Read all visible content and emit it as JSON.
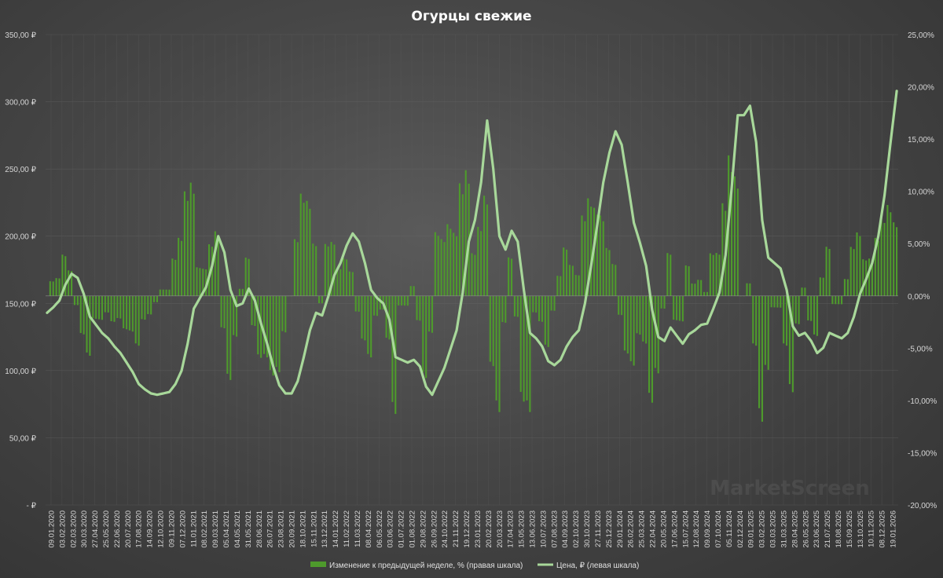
{
  "chart_data": {
    "type": "bar+line",
    "title": "Огурцы свежие",
    "watermark": "MarketScreen",
    "left_axis": {
      "ylim": [
        0,
        350
      ],
      "ticks": [
        "-  ₽",
        "50,00 ₽",
        "100,00 ₽",
        "150,00 ₽",
        "200,00 ₽",
        "250,00 ₽",
        "300,00 ₽",
        "350,00 ₽"
      ]
    },
    "right_axis": {
      "ylim": [
        -20,
        25
      ],
      "ticks": [
        "-20,00%",
        "-15,00%",
        "-10,00%",
        "-5,00%",
        "0,00%",
        "5,00%",
        "10,00%",
        "15,00%",
        "20,00%",
        "25,00%"
      ]
    },
    "x_tick_labels": [
      "09.01.2020",
      "03.02.2020",
      "02.03.2020",
      "30.03.2020",
      "27.04.2020",
      "25.05.2020",
      "22.06.2020",
      "20.07.2020",
      "17.08.2020",
      "14.09.2020",
      "12.10.2020",
      "09.11.2020",
      "07.12.2020",
      "11.01.2021",
      "08.02.2021",
      "09.03.2021",
      "05.04.2021",
      "04.05.2021",
      "31.05.2021",
      "28.06.2021",
      "26.07.2021",
      "23.08.2021",
      "20.09.2021",
      "18.10.2021",
      "15.11.2021",
      "13.12.2021",
      "14.01.2022",
      "11.02.2022",
      "11.03.2022",
      "08.04.2022",
      "06.05.2022",
      "03.06.2022",
      "01.07.2022",
      "01.08.2022",
      "29.08.2022",
      "26.09.2022",
      "24.10.2022",
      "21.11.2022",
      "19.12.2022",
      "23.01.2023",
      "20.02.2023",
      "20.03.2023",
      "17.04.2023",
      "15.05.2023",
      "13.06.2023",
      "10.07.2023",
      "07.08.2023",
      "04.09.2023",
      "02.10.2023",
      "30.10.2023",
      "27.11.2023",
      "25.12.2023",
      "29.01.2024",
      "26.02.2024",
      "25.03.2024",
      "22.04.2024",
      "20.05.2024",
      "17.06.2024",
      "15.07.2024",
      "12.08.2024",
      "09.09.2024",
      "07.10.2024",
      "05.11.2024",
      "02.12.2024",
      "09.01.2025",
      "03.02.2025",
      "03.03.2025",
      "31.03.2025",
      "28.04.2025",
      "26.05.2025",
      "23.06.2025",
      "21.07.2025",
      "18.08.2025",
      "15.09.2025",
      "13.10.2025",
      "10.11.2025",
      "08.12.2025",
      "19.01.2026"
    ],
    "price_keyframes": [
      [
        0,
        143
      ],
      [
        2,
        147
      ],
      [
        4,
        152
      ],
      [
        6,
        164
      ],
      [
        8,
        172
      ],
      [
        10,
        169
      ],
      [
        12,
        157
      ],
      [
        14,
        140
      ],
      [
        16,
        134
      ],
      [
        18,
        128
      ],
      [
        20,
        124
      ],
      [
        22,
        118
      ],
      [
        24,
        113
      ],
      [
        26,
        106
      ],
      [
        28,
        99
      ],
      [
        30,
        90
      ],
      [
        32,
        86
      ],
      [
        34,
        83
      ],
      [
        36,
        82
      ],
      [
        38,
        83
      ],
      [
        40,
        84
      ],
      [
        42,
        90
      ],
      [
        44,
        100
      ],
      [
        46,
        120
      ],
      [
        48,
        146
      ],
      [
        50,
        154
      ],
      [
        52,
        162
      ],
      [
        54,
        178
      ],
      [
        56,
        200
      ],
      [
        58,
        188
      ],
      [
        60,
        160
      ],
      [
        62,
        148
      ],
      [
        64,
        150
      ],
      [
        66,
        161
      ],
      [
        68,
        152
      ],
      [
        70,
        135
      ],
      [
        72,
        120
      ],
      [
        74,
        103
      ],
      [
        76,
        89
      ],
      [
        78,
        83
      ],
      [
        80,
        83
      ],
      [
        82,
        92
      ],
      [
        84,
        110
      ],
      [
        86,
        130
      ],
      [
        88,
        143
      ],
      [
        90,
        141
      ],
      [
        92,
        155
      ],
      [
        94,
        171
      ],
      [
        96,
        180
      ],
      [
        98,
        193
      ],
      [
        100,
        202
      ],
      [
        102,
        196
      ],
      [
        104,
        180
      ],
      [
        106,
        160
      ],
      [
        108,
        154
      ],
      [
        110,
        150
      ],
      [
        112,
        138
      ],
      [
        114,
        110
      ],
      [
        116,
        108
      ],
      [
        118,
        106
      ],
      [
        120,
        108
      ],
      [
        122,
        103
      ],
      [
        124,
        88
      ],
      [
        126,
        82
      ],
      [
        128,
        92
      ],
      [
        130,
        102
      ],
      [
        132,
        116
      ],
      [
        134,
        130
      ],
      [
        136,
        158
      ],
      [
        138,
        196
      ],
      [
        140,
        212
      ],
      [
        142,
        240
      ],
      [
        144,
        286
      ],
      [
        146,
        250
      ],
      [
        148,
        200
      ],
      [
        150,
        190
      ],
      [
        152,
        204
      ],
      [
        154,
        196
      ],
      [
        156,
        160
      ],
      [
        158,
        128
      ],
      [
        160,
        124
      ],
      [
        162,
        118
      ],
      [
        164,
        107
      ],
      [
        166,
        104
      ],
      [
        168,
        108
      ],
      [
        170,
        118
      ],
      [
        172,
        125
      ],
      [
        174,
        130
      ],
      [
        176,
        150
      ],
      [
        178,
        178
      ],
      [
        180,
        208
      ],
      [
        182,
        240
      ],
      [
        184,
        262
      ],
      [
        186,
        278
      ],
      [
        188,
        268
      ],
      [
        190,
        240
      ],
      [
        192,
        210
      ],
      [
        194,
        195
      ],
      [
        196,
        178
      ],
      [
        198,
        145
      ],
      [
        200,
        125
      ],
      [
        202,
        122
      ],
      [
        204,
        132
      ],
      [
        206,
        126
      ],
      [
        208,
        120
      ],
      [
        210,
        127
      ],
      [
        212,
        130
      ],
      [
        214,
        134
      ],
      [
        216,
        135
      ],
      [
        218,
        146
      ],
      [
        220,
        158
      ],
      [
        222,
        186
      ],
      [
        224,
        236
      ],
      [
        226,
        290
      ],
      [
        228,
        290
      ],
      [
        230,
        297
      ],
      [
        232,
        270
      ],
      [
        234,
        212
      ],
      [
        236,
        184
      ],
      [
        238,
        180
      ],
      [
        240,
        176
      ],
      [
        242,
        160
      ],
      [
        244,
        133
      ],
      [
        246,
        126
      ],
      [
        248,
        128
      ],
      [
        250,
        122
      ],
      [
        252,
        113
      ],
      [
        254,
        117
      ],
      [
        256,
        128
      ],
      [
        258,
        126
      ],
      [
        260,
        124
      ],
      [
        262,
        128
      ],
      [
        264,
        140
      ],
      [
        266,
        157
      ],
      [
        268,
        168
      ],
      [
        270,
        180
      ],
      [
        272,
        200
      ],
      [
        274,
        230
      ],
      [
        276,
        270
      ],
      [
        278,
        308
      ]
    ],
    "bar_series_name": "Изменение к предыдущей неделе, % (правая шкала)",
    "line_series_name": "Цена, ₽ (левая шкала)",
    "bar_values_rule": "percent change between consecutive weekly prices (right axis)",
    "colors": {
      "bars": "#4e9a2c",
      "line": "#a8d89a",
      "text": "#d6d6d6"
    }
  }
}
